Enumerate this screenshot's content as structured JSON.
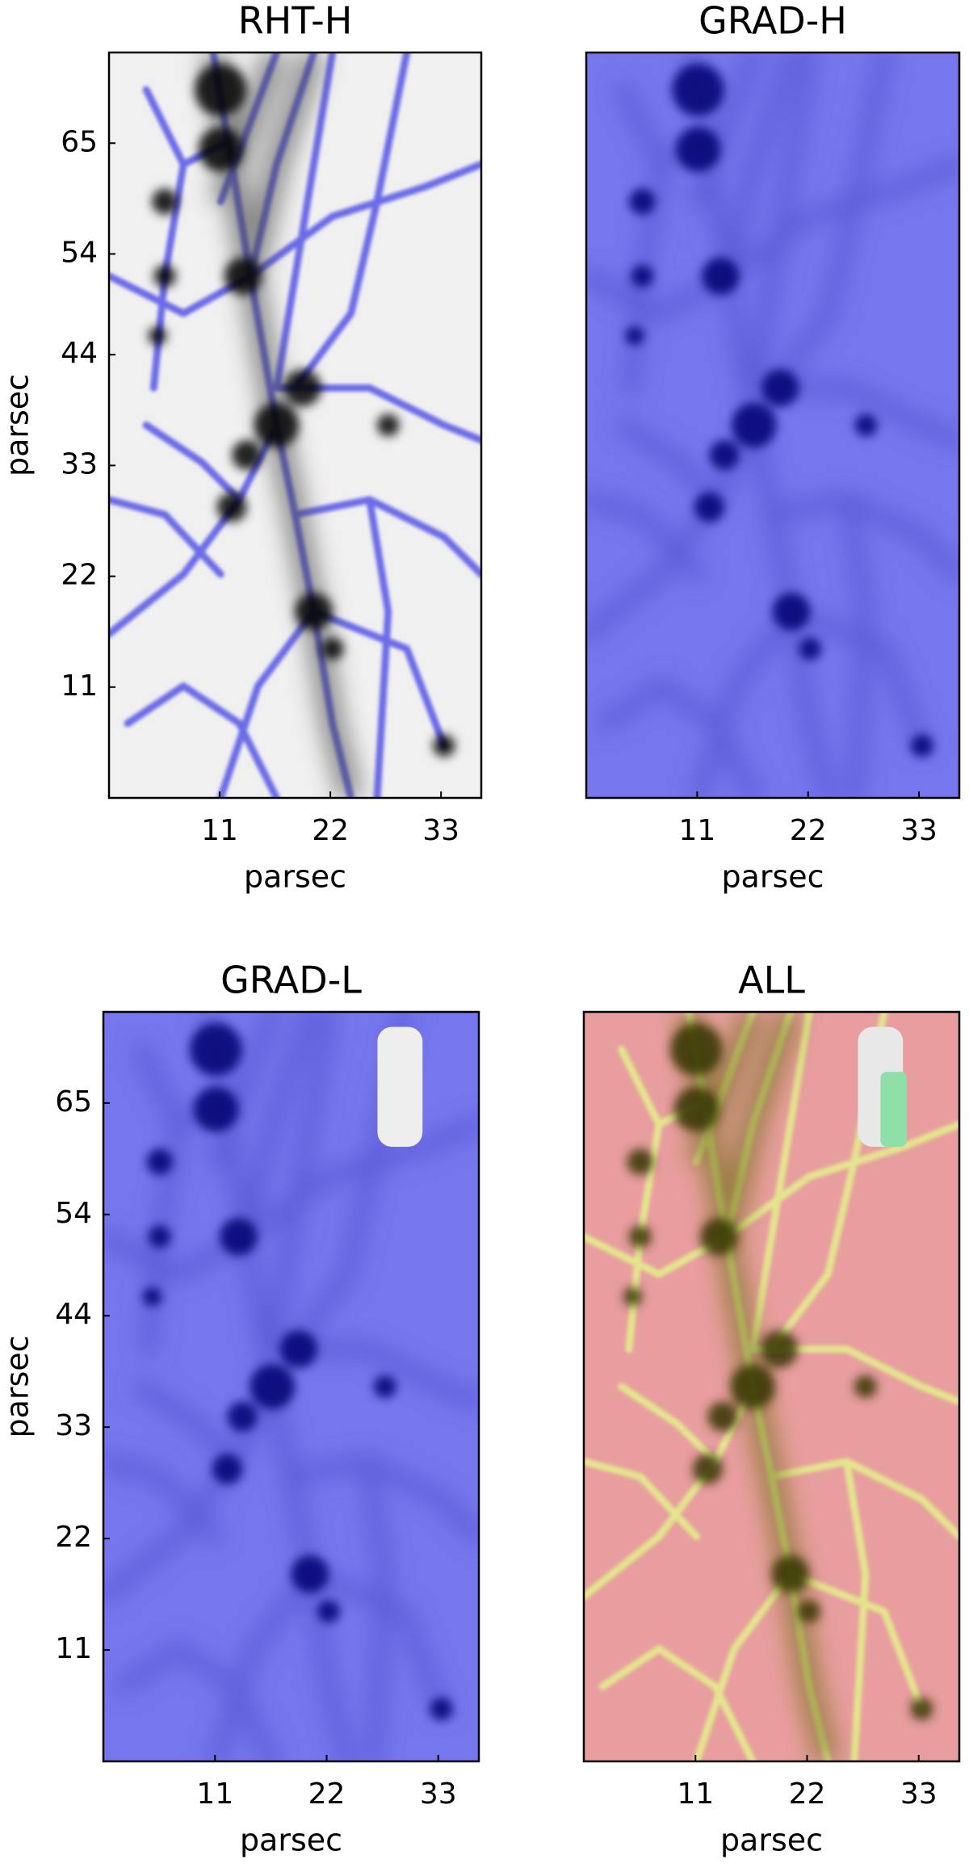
{
  "chart_data": [
    {
      "type": "image",
      "title": "RHT-H",
      "xlabel": "parsec",
      "ylabel": "parsec",
      "xlim": [
        0,
        37
      ],
      "ylim": [
        0,
        74
      ],
      "xticks": [
        11,
        22,
        33
      ],
      "yticks": [
        11,
        22,
        33,
        44,
        54,
        65
      ]
    },
    {
      "type": "image",
      "title": "GRAD-H",
      "xlabel": "parsec",
      "xlim": [
        0,
        37
      ],
      "ylim": [
        0,
        74
      ],
      "xticks": [
        11,
        22,
        33
      ]
    },
    {
      "type": "image",
      "title": "GRAD-L",
      "xlabel": "parsec",
      "ylabel": "parsec",
      "xlim": [
        0,
        37
      ],
      "ylim": [
        0,
        74
      ],
      "xticks": [
        11,
        22,
        33
      ],
      "yticks": [
        11,
        22,
        33,
        44,
        54,
        65
      ]
    },
    {
      "type": "image",
      "title": "ALL",
      "xlabel": "parsec",
      "xlim": [
        0,
        37
      ],
      "ylim": [
        0,
        74
      ],
      "xticks": [
        11,
        22,
        33
      ]
    }
  ]
}
